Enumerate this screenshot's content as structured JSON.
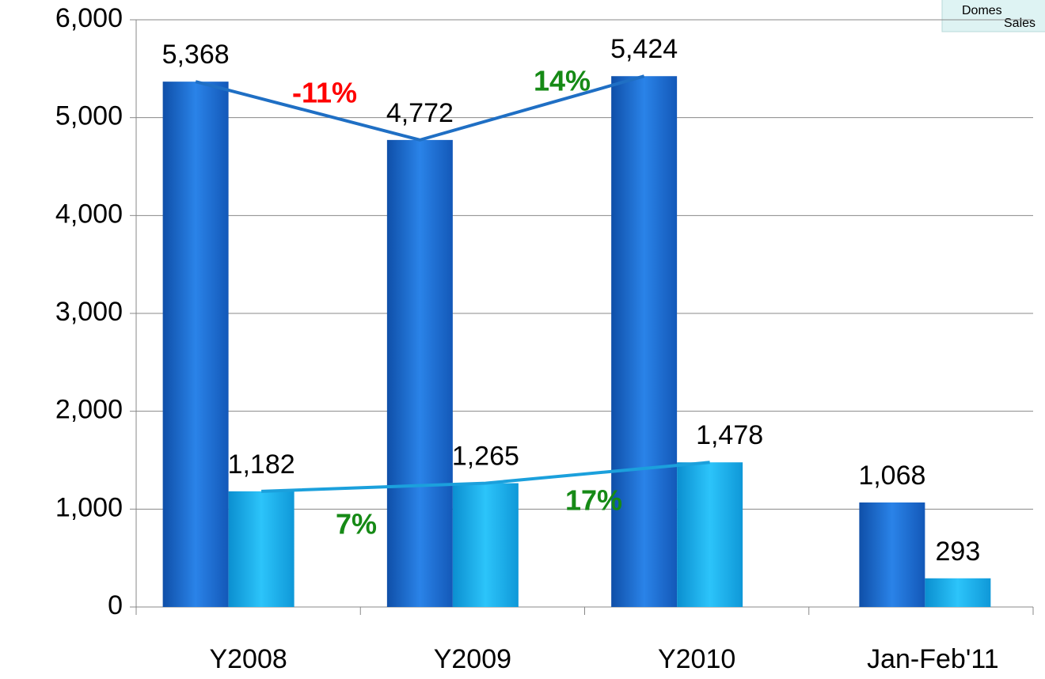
{
  "chart_data": {
    "type": "bar",
    "categories": [
      "Y2008",
      "Y2009",
      "Y2010",
      "Jan-Feb'11"
    ],
    "series": [
      {
        "color": "#1a6fd6",
        "values": [
          5368,
          4772,
          5424,
          1068
        ],
        "value_labels": [
          "5,368",
          "4,772",
          "5,424",
          "1,068"
        ]
      },
      {
        "color": "#19b2ee",
        "values": [
          1182,
          1265,
          1478,
          293
        ],
        "value_labels": [
          "1,182",
          "1,265",
          "1,478",
          "293"
        ]
      }
    ],
    "trend_colors": [
      "#1f6fc4",
      "#1ba0dc"
    ],
    "ylim": [
      0,
      6000
    ],
    "yticks": [
      0,
      {
        "value": 1000,
        "label": "1,000"
      },
      {
        "value": 2000,
        "label": "2,000"
      },
      {
        "value": 3000,
        "label": "3,000"
      },
      {
        "value": 4000,
        "label": "4,000"
      },
      {
        "value": 5000,
        "label": "5,000"
      },
      {
        "value": 6000,
        "label": "6,000"
      }
    ],
    "grid": true,
    "annotations": [
      {
        "text": "-11%",
        "color": "#ff0000"
      },
      {
        "text": "14%",
        "color": "#168a16"
      },
      {
        "text": "7%",
        "color": "#168a16"
      },
      {
        "text": "17%",
        "color": "#168a16"
      }
    ],
    "legend_text": [
      "Domes",
      "Sales"
    ]
  }
}
